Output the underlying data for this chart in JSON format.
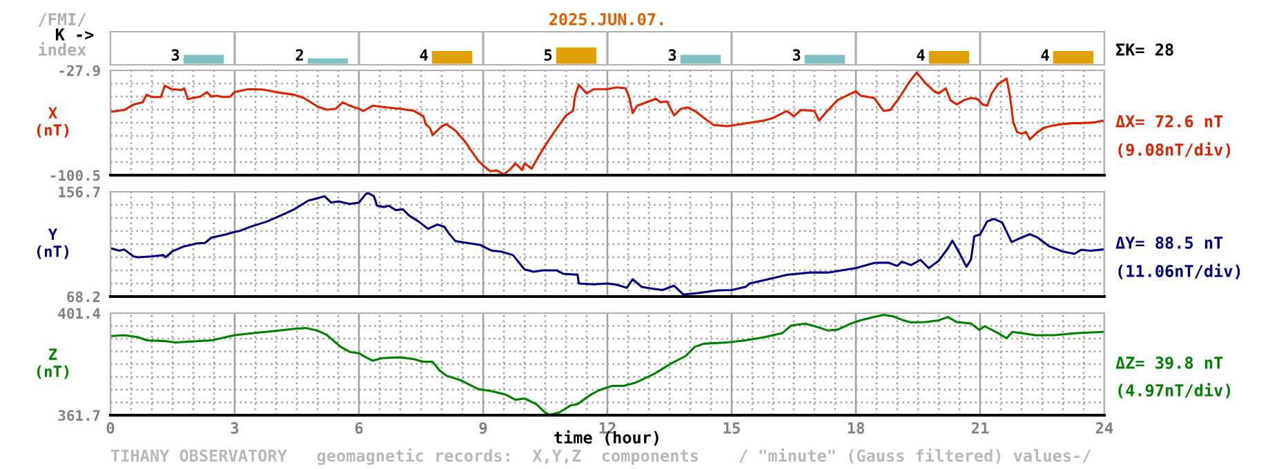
{
  "chart_data": [
    {
      "type": "bar",
      "title": "2025.JUN.07.",
      "categories": [
        null,
        null,
        null,
        null,
        null,
        null,
        null,
        null
      ],
      "values": [
        3,
        2,
        4,
        5,
        3,
        3,
        4,
        4
      ],
      "colors": [
        "#80c0c0",
        "#80c0c0",
        "#e0a000",
        "#e0a000",
        "#80c0c0",
        "#80c0c0",
        "#e0a000",
        "#e0a000"
      ],
      "data_labels": true,
      "tick_labels": false,
      "annotations": [
        "/FMI/",
        "K ->",
        "index",
        "ΣK= 28"
      ]
    },
    {
      "type": "line",
      "ylabel": "X\n(nT)",
      "xlim": [
        0,
        24
      ],
      "ylim": [
        -100.5,
        -27.9
      ],
      "xticks": [
        0,
        {
          "value": 0.5,
          "label": null
        },
        {
          "value": 1,
          "label": null
        },
        {
          "value": 1.5,
          "label": null
        },
        {
          "value": 2,
          "label": null
        },
        {
          "value": 2.5,
          "label": null
        },
        3,
        {
          "value": 3.5,
          "label": null
        },
        {
          "value": 4,
          "label": null
        },
        {
          "value": 4.5,
          "label": null
        },
        {
          "value": 5,
          "label": null
        },
        {
          "value": 5.5,
          "label": null
        },
        6,
        {
          "value": 6.5,
          "label": null
        },
        {
          "value": 7,
          "label": null
        },
        {
          "value": 7.5,
          "label": null
        },
        {
          "value": 8,
          "label": null
        },
        {
          "value": 8.5,
          "label": null
        },
        9,
        {
          "value": 9.5,
          "label": null
        },
        {
          "value": 10,
          "label": null
        },
        {
          "value": 10.5,
          "label": null
        },
        {
          "value": 11,
          "label": null
        },
        {
          "value": 11.5,
          "label": null
        },
        12,
        {
          "value": 12.5,
          "label": null
        },
        {
          "value": 13,
          "label": null
        },
        {
          "value": 13.5,
          "label": null
        },
        {
          "value": 14,
          "label": null
        },
        {
          "value": 14.5,
          "label": null
        },
        15,
        {
          "value": 15.5,
          "label": null
        },
        {
          "value": 16,
          "label": null
        },
        {
          "value": 16.5,
          "label": null
        },
        {
          "value": 17,
          "label": null
        },
        {
          "value": 17.5,
          "label": null
        },
        18,
        {
          "value": 18.5,
          "label": null
        },
        {
          "value": 19,
          "label": null
        },
        {
          "value": 19.5,
          "label": null
        },
        {
          "value": 20,
          "label": null
        },
        {
          "value": 20.5,
          "label": null
        },
        21,
        {
          "value": 21.5,
          "label": null
        },
        {
          "value": 22,
          "label": null
        },
        {
          "value": 22.5,
          "label": null
        },
        {
          "value": 23,
          "label": null
        },
        {
          "value": 23.5,
          "label": null
        },
        24
      ],
      "yticks": [
        -100.5,
        {
          "value": -91.43,
          "label": null
        },
        {
          "value": -82.35,
          "label": null
        },
        {
          "value": -73.28,
          "label": null
        },
        {
          "value": -64.2,
          "label": null
        },
        {
          "value": -55.13,
          "label": null
        },
        {
          "value": -46.05,
          "label": null
        },
        {
          "value": -36.98,
          "label": null
        },
        -27.9
      ],
      "tick_labels": "y",
      "grid": true,
      "line_style": "solid",
      "marker": "none",
      "x": [
        0.02,
        0.33,
        0.56,
        0.78,
        0.87,
        1.0,
        1.22,
        1.31,
        1.47,
        1.72,
        1.78,
        1.87,
        2.0,
        2.17,
        2.33,
        2.44,
        2.56,
        2.72,
        2.89,
        3.0,
        3.33,
        3.67,
        4.0,
        4.44,
        4.67,
        5.0,
        5.22,
        5.44,
        5.61,
        5.78,
        6.0,
        6.11,
        6.33,
        6.67,
        7.0,
        7.33,
        7.56,
        7.61,
        7.72,
        7.78,
        8.0,
        8.11,
        8.33,
        8.56,
        8.78,
        8.89,
        9.0,
        9.17,
        9.33,
        9.5,
        9.67,
        9.78,
        9.94,
        10.0,
        10.17,
        10.33,
        10.56,
        10.78,
        11.0,
        11.17,
        11.22,
        11.31,
        11.5,
        11.67,
        12.0,
        12.22,
        12.44,
        12.53,
        12.61,
        12.72,
        13.0,
        13.17,
        13.28,
        13.44,
        13.61,
        13.78,
        13.94,
        14.11,
        14.39,
        14.56,
        14.89,
        15.22,
        15.44,
        15.78,
        16.0,
        16.33,
        16.5,
        16.67,
        17.0,
        17.11,
        17.33,
        17.56,
        17.78,
        18.0,
        18.11,
        18.44,
        18.67,
        18.83,
        19.06,
        19.28,
        19.47,
        19.67,
        19.89,
        20.0,
        20.17,
        20.28,
        20.44,
        20.61,
        20.78,
        20.94,
        21.06,
        21.17,
        21.28,
        21.44,
        21.64,
        21.72,
        21.8,
        21.89,
        22.0,
        22.11,
        22.2,
        22.39,
        22.56,
        22.78,
        23.0,
        23.22,
        23.44,
        23.78,
        23.94,
        24.0
      ],
      "series": [
        {
          "color": "#e02000",
          "values": [
            -56.6,
            -55.4,
            -51.5,
            -50.0,
            -44.8,
            -46.4,
            -46.4,
            -38.5,
            -40.9,
            -41.5,
            -40.3,
            -47.9,
            -47.0,
            -46.1,
            -43.0,
            -46.1,
            -45.4,
            -46.4,
            -46.1,
            -43.0,
            -40.9,
            -41.2,
            -43.0,
            -44.8,
            -47.0,
            -53.0,
            -55.1,
            -54.5,
            -50.0,
            -52.4,
            -54.5,
            -56.0,
            -52.4,
            -53.6,
            -54.5,
            -56.0,
            -59.7,
            -65.1,
            -68.1,
            -72.7,
            -66.6,
            -65.1,
            -69.6,
            -77.2,
            -86.3,
            -90.8,
            -93.8,
            -97.8,
            -97.2,
            -99.9,
            -96.0,
            -92.3,
            -96.9,
            -92.3,
            -96.0,
            -87.8,
            -77.2,
            -68.1,
            -59.1,
            -56.0,
            -45.4,
            -37.9,
            -43.9,
            -40.9,
            -40.9,
            -39.7,
            -40.3,
            -47.0,
            -57.5,
            -52.4,
            -49.4,
            -47.6,
            -50.0,
            -49.4,
            -59.1,
            -54.5,
            -53.6,
            -56.0,
            -62.1,
            -65.7,
            -66.6,
            -65.1,
            -64.2,
            -62.7,
            -60.9,
            -56.0,
            -59.7,
            -55.4,
            -56.0,
            -62.7,
            -55.4,
            -48.5,
            -45.4,
            -42.4,
            -45.4,
            -47.0,
            -56.0,
            -55.4,
            -46.4,
            -36.4,
            -29.4,
            -36.4,
            -42.4,
            -43.9,
            -40.3,
            -48.5,
            -51.5,
            -48.5,
            -47.0,
            -47.9,
            -51.5,
            -52.4,
            -43.9,
            -37.3,
            -33.6,
            -45.4,
            -63.6,
            -70.6,
            -71.8,
            -70.6,
            -75.7,
            -70.6,
            -67.5,
            -66.0,
            -65.1,
            -64.5,
            -64.5,
            -63.9,
            -62.7,
            -63.6
          ]
        }
      ],
      "annotations": [
        "ΔX= 72.6 nT",
        "(9.08nT/div)"
      ]
    },
    {
      "type": "line",
      "ylabel": "Y\n(nT)",
      "xlim": [
        0,
        24
      ],
      "ylim": [
        68.2,
        156.7
      ],
      "xticks": [
        0,
        {
          "value": 0.5,
          "label": null
        },
        {
          "value": 1,
          "label": null
        },
        {
          "value": 1.5,
          "label": null
        },
        {
          "value": 2,
          "label": null
        },
        {
          "value": 2.5,
          "label": null
        },
        3,
        {
          "value": 3.5,
          "label": null
        },
        {
          "value": 4,
          "label": null
        },
        {
          "value": 4.5,
          "label": null
        },
        {
          "value": 5,
          "label": null
        },
        {
          "value": 5.5,
          "label": null
        },
        6,
        {
          "value": 6.5,
          "label": null
        },
        {
          "value": 7,
          "label": null
        },
        {
          "value": 7.5,
          "label": null
        },
        {
          "value": 8,
          "label": null
        },
        {
          "value": 8.5,
          "label": null
        },
        9,
        {
          "value": 9.5,
          "label": null
        },
        {
          "value": 10,
          "label": null
        },
        {
          "value": 10.5,
          "label": null
        },
        {
          "value": 11,
          "label": null
        },
        {
          "value": 11.5,
          "label": null
        },
        12,
        {
          "value": 12.5,
          "label": null
        },
        {
          "value": 13,
          "label": null
        },
        {
          "value": 13.5,
          "label": null
        },
        {
          "value": 14,
          "label": null
        },
        {
          "value": 14.5,
          "label": null
        },
        15,
        {
          "value": 15.5,
          "label": null
        },
        {
          "value": 16,
          "label": null
        },
        {
          "value": 16.5,
          "label": null
        },
        {
          "value": 17,
          "label": null
        },
        {
          "value": 17.5,
          "label": null
        },
        18,
        {
          "value": 18.5,
          "label": null
        },
        {
          "value": 19,
          "label": null
        },
        {
          "value": 19.5,
          "label": null
        },
        {
          "value": 20,
          "label": null
        },
        {
          "value": 20.5,
          "label": null
        },
        21,
        {
          "value": 21.5,
          "label": null
        },
        {
          "value": 22,
          "label": null
        },
        {
          "value": 22.5,
          "label": null
        },
        {
          "value": 23,
          "label": null
        },
        {
          "value": 23.5,
          "label": null
        },
        24
      ],
      "yticks": [
        68.2,
        {
          "value": 79.28,
          "label": null
        },
        {
          "value": 90.34,
          "label": null
        },
        {
          "value": 101.4,
          "label": null
        },
        {
          "value": 112.46,
          "label": null
        },
        {
          "value": 123.52,
          "label": null
        },
        {
          "value": 134.58,
          "label": null
        },
        {
          "value": 145.64,
          "label": null
        },
        156.7
      ],
      "tick_labels": "y",
      "grid": true,
      "line_style": "solid",
      "marker": "none",
      "x": [
        0.02,
        0.22,
        0.33,
        0.56,
        0.67,
        1.0,
        1.28,
        1.33,
        1.5,
        1.78,
        2.11,
        2.28,
        2.44,
        2.78,
        3.0,
        3.11,
        3.39,
        3.78,
        4.22,
        4.44,
        4.78,
        5.0,
        5.17,
        5.33,
        5.5,
        5.78,
        6.0,
        6.17,
        6.22,
        6.36,
        6.44,
        6.61,
        6.72,
        6.89,
        7.06,
        7.22,
        7.44,
        7.67,
        7.89,
        8.06,
        8.17,
        8.33,
        8.67,
        8.94,
        9.06,
        9.22,
        9.44,
        9.72,
        9.89,
        10.0,
        10.22,
        10.44,
        10.78,
        10.94,
        11.28,
        11.31,
        11.67,
        12.0,
        12.22,
        12.47,
        12.61,
        12.83,
        13.11,
        13.33,
        13.61,
        13.83,
        14.17,
        14.67,
        15.0,
        15.33,
        15.44,
        15.89,
        16.33,
        16.89,
        17.33,
        17.78,
        18.0,
        18.44,
        18.78,
        19.0,
        19.11,
        19.33,
        19.56,
        19.76,
        20.0,
        20.22,
        20.33,
        20.5,
        20.67,
        20.78,
        20.86,
        21.0,
        21.17,
        21.33,
        21.53,
        21.76,
        22.0,
        22.2,
        22.39,
        22.67,
        23.0,
        23.28,
        23.44,
        23.67,
        23.98
      ],
      "series": [
        {
          "color": "#000080",
          "values": [
            108.8,
            106.9,
            108.0,
            102.1,
            101.4,
            102.1,
            103.2,
            101.4,
            106.5,
            110.6,
            113.2,
            113.5,
            118.0,
            120.6,
            122.8,
            123.5,
            127.2,
            131.6,
            138.3,
            141.9,
            149.3,
            151.2,
            153.0,
            147.5,
            148.6,
            146.4,
            147.5,
            154.9,
            155.6,
            153.0,
            144.9,
            143.8,
            144.9,
            141.2,
            141.9,
            136.4,
            131.6,
            125.4,
            129.0,
            127.2,
            121.7,
            115.0,
            113.2,
            111.7,
            109.5,
            106.9,
            106.2,
            103.2,
            95.9,
            91.1,
            89.2,
            90.3,
            90.3,
            87.4,
            86.6,
            79.3,
            78.5,
            79.3,
            78.2,
            75.6,
            82.9,
            76.3,
            74.8,
            73.7,
            77.4,
            70.0,
            71.1,
            73.4,
            73.7,
            76.3,
            79.3,
            82.9,
            86.6,
            88.5,
            88.5,
            91.1,
            92.2,
            96.6,
            96.9,
            94.0,
            97.7,
            94.8,
            99.2,
            92.2,
            98.4,
            108.8,
            115.4,
            105.1,
            93.3,
            99.5,
            119.1,
            120.6,
            131.6,
            133.8,
            130.9,
            114.3,
            118.0,
            120.9,
            118.0,
            110.6,
            106.2,
            104.3,
            107.7,
            106.9,
            108.0
          ]
        }
      ],
      "annotations": [
        "ΔY= 88.5 nT",
        "(11.06nT/div)"
      ]
    },
    {
      "type": "line",
      "ylabel": "Z\n(nT)",
      "xlabel": "time (hour)",
      "xlim": [
        0,
        24
      ],
      "ylim": [
        361.7,
        401.4
      ],
      "xticks": [
        0,
        {
          "value": 0.5,
          "label": null
        },
        {
          "value": 1,
          "label": null
        },
        {
          "value": 1.5,
          "label": null
        },
        {
          "value": 2,
          "label": null
        },
        {
          "value": 2.5,
          "label": null
        },
        3,
        {
          "value": 3.5,
          "label": null
        },
        {
          "value": 4,
          "label": null
        },
        {
          "value": 4.5,
          "label": null
        },
        {
          "value": 5,
          "label": null
        },
        {
          "value": 5.5,
          "label": null
        },
        6,
        {
          "value": 6.5,
          "label": null
        },
        {
          "value": 7,
          "label": null
        },
        {
          "value": 7.5,
          "label": null
        },
        {
          "value": 8,
          "label": null
        },
        {
          "value": 8.5,
          "label": null
        },
        9,
        {
          "value": 9.5,
          "label": null
        },
        {
          "value": 10,
          "label": null
        },
        {
          "value": 10.5,
          "label": null
        },
        {
          "value": 11,
          "label": null
        },
        {
          "value": 11.5,
          "label": null
        },
        12,
        {
          "value": 12.5,
          "label": null
        },
        {
          "value": 13,
          "label": null
        },
        {
          "value": 13.5,
          "label": null
        },
        {
          "value": 14,
          "label": null
        },
        {
          "value": 14.5,
          "label": null
        },
        15,
        {
          "value": 15.5,
          "label": null
        },
        {
          "value": 16,
          "label": null
        },
        {
          "value": 16.5,
          "label": null
        },
        {
          "value": 17,
          "label": null
        },
        {
          "value": 17.5,
          "label": null
        },
        18,
        {
          "value": 18.5,
          "label": null
        },
        {
          "value": 19,
          "label": null
        },
        {
          "value": 19.5,
          "label": null
        },
        {
          "value": 20,
          "label": null
        },
        {
          "value": 20.5,
          "label": null
        },
        21,
        {
          "value": 21.5,
          "label": null
        },
        {
          "value": 22,
          "label": null
        },
        {
          "value": 22.5,
          "label": null
        },
        {
          "value": 23,
          "label": null
        },
        {
          "value": 23.5,
          "label": null
        },
        24
      ],
      "yticks": [
        361.7,
        {
          "value": 366.66,
          "label": null
        },
        {
          "value": 371.63,
          "label": null
        },
        {
          "value": 376.59,
          "label": null
        },
        {
          "value": 381.55,
          "label": null
        },
        {
          "value": 386.51,
          "label": null
        },
        {
          "value": 391.48,
          "label": null
        },
        {
          "value": 396.44,
          "label": null
        },
        401.4
      ],
      "grid": true,
      "line_style": "solid",
      "marker": "none",
      "x": [
        0.02,
        0.33,
        0.67,
        0.89,
        1.33,
        1.56,
        1.89,
        2.44,
        3.0,
        3.56,
        4.0,
        4.44,
        4.72,
        5.0,
        5.22,
        5.56,
        5.78,
        6.0,
        6.17,
        6.33,
        6.56,
        7.0,
        7.33,
        7.56,
        7.78,
        7.94,
        8.11,
        8.44,
        8.89,
        9.22,
        9.56,
        9.78,
        10.0,
        10.28,
        10.5,
        10.61,
        10.83,
        11.11,
        11.28,
        11.56,
        11.78,
        12.11,
        12.39,
        12.67,
        13.11,
        13.56,
        13.89,
        14.11,
        14.33,
        14.89,
        15.33,
        15.78,
        16.22,
        16.44,
        16.78,
        17.11,
        17.33,
        17.56,
        17.89,
        18.11,
        18.44,
        18.67,
        18.89,
        19.11,
        19.33,
        19.67,
        20.0,
        20.22,
        20.44,
        20.78,
        20.98,
        21.11,
        21.44,
        21.64,
        21.78,
        22.0,
        22.33,
        22.78,
        23.33,
        23.97
      ],
      "series": [
        {
          "color": "#008000",
          "values": [
            392.5,
            392.8,
            392.0,
            390.8,
            390.5,
            390.0,
            390.3,
            390.8,
            392.8,
            393.8,
            394.5,
            395.3,
            395.6,
            394.6,
            393.0,
            388.3,
            386.3,
            385.8,
            384.2,
            382.9,
            383.9,
            384.2,
            383.5,
            382.5,
            382.5,
            379.2,
            377.1,
            375.4,
            371.8,
            371.0,
            369.6,
            367.7,
            368.2,
            366.0,
            362.7,
            361.9,
            362.7,
            365.5,
            366.0,
            369.3,
            371.3,
            373.1,
            373.1,
            374.3,
            377.6,
            382.0,
            384.7,
            388.3,
            389.5,
            390.0,
            390.8,
            392.0,
            393.6,
            396.6,
            397.3,
            395.8,
            394.6,
            395.0,
            397.4,
            398.6,
            399.9,
            400.7,
            400.2,
            398.8,
            397.8,
            397.9,
            398.6,
            399.9,
            397.9,
            397.4,
            394.9,
            396.3,
            393.6,
            391.6,
            394.1,
            393.6,
            392.8,
            392.8,
            393.6,
            394.1
          ]
        }
      ],
      "annotations": [
        "ΔZ= 39.8 nT",
        "(4.97nT/div)",
        "TIHANY OBSERVATORY   geomagnetic records:  X,Y,Z  components    / \"minute\" (Gauss filtered) values-/"
      ]
    }
  ]
}
